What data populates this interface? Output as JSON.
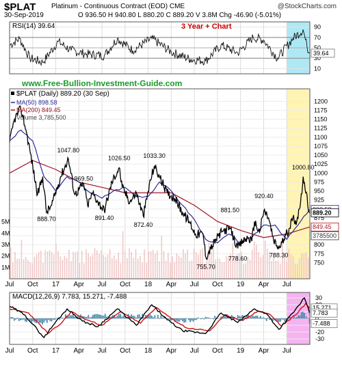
{
  "header": {
    "symbol": "$PLAT",
    "name": "Platinum - Continuous Contract (EOD) CME",
    "date": "30-Sep-2019",
    "ohlc": "O 936.50  H 940.80  L 880.20  C 889.20  V 3.8M  Chg -46.90 (-5.01%)",
    "brand": "@StockCharts.com",
    "change_color": "#cc0000"
  },
  "rsi": {
    "label": "RSI(14) 39.64",
    "current": 39.64,
    "current_label": "39.64",
    "annotation": "3 Year + Chart",
    "ticks": [
      10,
      30,
      50,
      70,
      90
    ],
    "levels": [
      30,
      70
    ],
    "ylim": [
      0,
      100
    ],
    "highlight_color": "#aee8f5"
  },
  "price": {
    "site": "www.Free-Bullion-Investment-Guide.com",
    "legend": {
      "main": "$PLAT (Daily) 889.20 (30 Sep)",
      "ma50": "MA(50) 898.58",
      "ma200": "MA(200) 849.45",
      "volume": "Volume 3,785,500"
    },
    "ylim": [
      705,
      1235
    ],
    "ticks": [
      750,
      775,
      800,
      825,
      850,
      875,
      900,
      925,
      950,
      975,
      1000,
      1025,
      1050,
      1075,
      1100,
      1125,
      1150,
      1175,
      1200
    ],
    "volume_ticks": [
      {
        "label": "1M",
        "value": 1000000
      },
      {
        "label": "2M",
        "value": 2000000
      },
      {
        "label": "3M",
        "value": 3000000
      },
      {
        "label": "4M",
        "value": 4000000
      },
      {
        "label": "5M",
        "value": 5000000
      }
    ],
    "volume_max": 7200000,
    "end_labels": [
      {
        "text": "898.58",
        "value": 898.58,
        "color": "#2a2a9a"
      },
      {
        "text": "889.20",
        "value": 889.2,
        "color": "#000000",
        "bold": true
      },
      {
        "text": "849.45",
        "value": 849.45,
        "color": "#b01020"
      },
      {
        "text": "3785500",
        "value": 3785500,
        "color": "#333333",
        "volume": true
      }
    ],
    "highlight_color": "#fff4b3",
    "ma50_color": "#2a2a9a",
    "ma200_color": "#a01020",
    "volume_color": "#f0c8c8"
  },
  "macd": {
    "label": "MACD(12,26,9) 7.783, 15.271, -7.488",
    "ylim": [
      -38,
      38
    ],
    "ticks": [
      -30,
      -20,
      -10,
      0,
      10,
      20,
      30
    ],
    "end_labels": [
      {
        "text": "15.271",
        "value": 15.271
      },
      {
        "text": "7.783",
        "value": 7.783
      },
      {
        "text": "-7.488",
        "value": -7.488
      }
    ],
    "highlight_color": "#f5b3f0",
    "hist_color": "#4a8ab0"
  },
  "x_axis": {
    "labels": [
      "Jul",
      "Oct",
      "17",
      "Apr",
      "Jul",
      "Oct",
      "18",
      "Apr",
      "Jul",
      "Oct",
      "19",
      "Apr",
      "Jul"
    ],
    "label_months": [
      0,
      3,
      6,
      9,
      12,
      15,
      18,
      21,
      24,
      27,
      30,
      33,
      36
    ],
    "month_span": [
      0,
      39
    ],
    "highlight_range": [
      36,
      39
    ]
  },
  "chart_data": {
    "type": "line",
    "title": "$PLAT (Daily) 889.20 (30 Sep)",
    "x_start": "2016-07",
    "x_end": "2019-09-30",
    "ylim": [
      705,
      1235
    ],
    "price_path": [
      {
        "date": "2016-07-01",
        "value": 1085
      },
      {
        "date": "2016-07-20",
        "value": 1150
      },
      {
        "date": "2016-08-15",
        "value": 1180
      },
      {
        "date": "2016-09-05",
        "value": 1120
      },
      {
        "date": "2016-09-20",
        "value": 1065
      },
      {
        "date": "2016-10-20",
        "value": 940
      },
      {
        "date": "2016-11-10",
        "value": 990
      },
      {
        "date": "2016-11-25",
        "value": 890
      },
      {
        "date": "2016-12-15",
        "value": 910
      },
      {
        "date": "2017-01-20",
        "value": 990
      },
      {
        "date": "2017-02-20",
        "value": 1040
      },
      {
        "date": "2017-03-15",
        "value": 940
      },
      {
        "date": "2017-04-20",
        "value": 970
      },
      {
        "date": "2017-05-05",
        "value": 910
      },
      {
        "date": "2017-05-25",
        "value": 945
      },
      {
        "date": "2017-06-15",
        "value": 920
      },
      {
        "date": "2017-07-10",
        "value": 895
      },
      {
        "date": "2017-08-10",
        "value": 975
      },
      {
        "date": "2017-09-08",
        "value": 1015
      },
      {
        "date": "2017-09-20",
        "value": 960
      },
      {
        "date": "2017-10-20",
        "value": 920
      },
      {
        "date": "2017-11-15",
        "value": 945
      },
      {
        "date": "2017-12-12",
        "value": 880
      },
      {
        "date": "2018-01-10",
        "value": 980
      },
      {
        "date": "2018-01-25",
        "value": 1020
      },
      {
        "date": "2018-02-15",
        "value": 990
      },
      {
        "date": "2018-03-15",
        "value": 945
      },
      {
        "date": "2018-04-15",
        "value": 930
      },
      {
        "date": "2018-05-15",
        "value": 890
      },
      {
        "date": "2018-06-15",
        "value": 860
      },
      {
        "date": "2018-07-05",
        "value": 830
      },
      {
        "date": "2018-08-05",
        "value": 830
      },
      {
        "date": "2018-08-16",
        "value": 765
      },
      {
        "date": "2018-09-05",
        "value": 790
      },
      {
        "date": "2018-10-05",
        "value": 825
      },
      {
        "date": "2018-10-25",
        "value": 840
      },
      {
        "date": "2018-11-20",
        "value": 845
      },
      {
        "date": "2018-12-20",
        "value": 790
      },
      {
        "date": "2019-01-10",
        "value": 810
      },
      {
        "date": "2019-01-31",
        "value": 820
      },
      {
        "date": "2019-02-15",
        "value": 810
      },
      {
        "date": "2019-02-25",
        "value": 865
      },
      {
        "date": "2019-03-15",
        "value": 835
      },
      {
        "date": "2019-04-02",
        "value": 895
      },
      {
        "date": "2019-04-20",
        "value": 875
      },
      {
        "date": "2019-05-10",
        "value": 810
      },
      {
        "date": "2019-05-30",
        "value": 790
      },
      {
        "date": "2019-06-20",
        "value": 815
      },
      {
        "date": "2019-07-10",
        "value": 845
      },
      {
        "date": "2019-07-25",
        "value": 875
      },
      {
        "date": "2019-08-10",
        "value": 865
      },
      {
        "date": "2019-08-25",
        "value": 920
      },
      {
        "date": "2019-09-05",
        "value": 990
      },
      {
        "date": "2019-09-15",
        "value": 945
      },
      {
        "date": "2019-09-30",
        "value": 889.2
      }
    ],
    "annotations": [
      {
        "text": "1047.80",
        "date": "2017-02-20",
        "value": 1047.8,
        "pos": "above"
      },
      {
        "text": "1026.50",
        "date": "2017-09-08",
        "value": 1026.5,
        "pos": "above"
      },
      {
        "text": "1033.30",
        "date": "2018-01-25",
        "value": 1033.3,
        "pos": "above"
      },
      {
        "text": "1000.80",
        "date": "2019-09-05",
        "value": 1000.8,
        "pos": "above"
      },
      {
        "text": "969.50",
        "date": "2017-04-20",
        "value": 969.5,
        "pos": "above"
      },
      {
        "text": "920.40",
        "date": "2019-04-02",
        "value": 920.4,
        "pos": "above"
      },
      {
        "text": "881.50",
        "date": "2018-11-20",
        "value": 881.5,
        "pos": "above"
      },
      {
        "text": "888.70",
        "date": "2016-11-25",
        "value": 888.7,
        "pos": "below"
      },
      {
        "text": "891.40",
        "date": "2017-07-10",
        "value": 891.4,
        "pos": "below"
      },
      {
        "text": "872.40",
        "date": "2017-12-12",
        "value": 872.4,
        "pos": "below"
      },
      {
        "text": "778.60",
        "date": "2018-12-20",
        "value": 778.6,
        "pos": "below"
      },
      {
        "text": "788.30",
        "date": "2019-05-30",
        "value": 788.3,
        "pos": "below"
      },
      {
        "text": "755.70",
        "date": "2018-08-16",
        "value": 755.7,
        "pos": "below"
      }
    ],
    "series": [
      {
        "name": "MA(50) 898.58",
        "values": [
          {
            "date": "2016-07-01",
            "value": 1090
          },
          {
            "date": "2016-08-15",
            "value": 1120
          },
          {
            "date": "2016-10-01",
            "value": 1090
          },
          {
            "date": "2016-11-15",
            "value": 990
          },
          {
            "date": "2017-01-01",
            "value": 950
          },
          {
            "date": "2017-02-15",
            "value": 990
          },
          {
            "date": "2017-04-01",
            "value": 975
          },
          {
            "date": "2017-05-15",
            "value": 945
          },
          {
            "date": "2017-07-01",
            "value": 930
          },
          {
            "date": "2017-08-15",
            "value": 950
          },
          {
            "date": "2017-10-01",
            "value": 960
          },
          {
            "date": "2017-11-15",
            "value": 935
          },
          {
            "date": "2018-01-01",
            "value": 935
          },
          {
            "date": "2018-02-15",
            "value": 975
          },
          {
            "date": "2018-04-01",
            "value": 950
          },
          {
            "date": "2018-05-15",
            "value": 910
          },
          {
            "date": "2018-07-01",
            "value": 870
          },
          {
            "date": "2018-08-15",
            "value": 815
          },
          {
            "date": "2018-10-01",
            "value": 805
          },
          {
            "date": "2018-11-15",
            "value": 830
          },
          {
            "date": "2019-01-01",
            "value": 805
          },
          {
            "date": "2019-02-15",
            "value": 820
          },
          {
            "date": "2019-04-01",
            "value": 855
          },
          {
            "date": "2019-05-15",
            "value": 855
          },
          {
            "date": "2019-07-01",
            "value": 815
          },
          {
            "date": "2019-08-15",
            "value": 855
          },
          {
            "date": "2019-09-30",
            "value": 898.58
          }
        ]
      },
      {
        "name": "MA(200) 849.45",
        "values": [
          {
            "date": "2016-07-01",
            "value": 1000
          },
          {
            "date": "2016-10-01",
            "value": 1035
          },
          {
            "date": "2017-01-01",
            "value": 1010
          },
          {
            "date": "2017-04-01",
            "value": 975
          },
          {
            "date": "2017-07-01",
            "value": 960
          },
          {
            "date": "2017-10-01",
            "value": 945
          },
          {
            "date": "2018-01-01",
            "value": 945
          },
          {
            "date": "2018-04-01",
            "value": 945
          },
          {
            "date": "2018-07-01",
            "value": 910
          },
          {
            "date": "2018-10-01",
            "value": 865
          },
          {
            "date": "2019-01-01",
            "value": 840
          },
          {
            "date": "2019-04-01",
            "value": 820
          },
          {
            "date": "2019-07-01",
            "value": 830
          },
          {
            "date": "2019-09-30",
            "value": 849.45
          }
        ]
      },
      {
        "name": "RSI(14) 39.64",
        "values": [
          {
            "date": "2016-07-01",
            "value": 55
          },
          {
            "date": "2016-08-10",
            "value": 68
          },
          {
            "date": "2016-09-20",
            "value": 30
          },
          {
            "date": "2016-11-10",
            "value": 22
          },
          {
            "date": "2017-01-10",
            "value": 62
          },
          {
            "date": "2017-03-01",
            "value": 45
          },
          {
            "date": "2017-05-01",
            "value": 38
          },
          {
            "date": "2017-07-10",
            "value": 35
          },
          {
            "date": "2017-09-01",
            "value": 68
          },
          {
            "date": "2017-11-01",
            "value": 45
          },
          {
            "date": "2018-01-15",
            "value": 68
          },
          {
            "date": "2018-04-01",
            "value": 42
          },
          {
            "date": "2018-06-15",
            "value": 28
          },
          {
            "date": "2018-08-15",
            "value": 25
          },
          {
            "date": "2018-10-15",
            "value": 55
          },
          {
            "date": "2018-12-20",
            "value": 40
          },
          {
            "date": "2019-02-20",
            "value": 70
          },
          {
            "date": "2019-04-01",
            "value": 65
          },
          {
            "date": "2019-05-25",
            "value": 30
          },
          {
            "date": "2019-07-25",
            "value": 68
          },
          {
            "date": "2019-09-05",
            "value": 85
          },
          {
            "date": "2019-09-20",
            "value": 52
          },
          {
            "date": "2019-09-30",
            "value": 39.64
          }
        ]
      },
      {
        "name": "MACD(12,26,9) 7.783",
        "values": [
          {
            "date": "2016-07-01",
            "value": 18
          },
          {
            "date": "2016-09-01",
            "value": 5
          },
          {
            "date": "2016-11-15",
            "value": -28
          },
          {
            "date": "2017-01-01",
            "value": -5
          },
          {
            "date": "2017-02-15",
            "value": 14
          },
          {
            "date": "2017-04-15",
            "value": -4
          },
          {
            "date": "2017-06-15",
            "value": -12
          },
          {
            "date": "2017-09-01",
            "value": 14
          },
          {
            "date": "2017-11-15",
            "value": -10
          },
          {
            "date": "2018-01-15",
            "value": 20
          },
          {
            "date": "2018-03-15",
            "value": -2
          },
          {
            "date": "2018-05-15",
            "value": -18
          },
          {
            "date": "2018-08-15",
            "value": -22
          },
          {
            "date": "2018-10-15",
            "value": 8
          },
          {
            "date": "2018-12-20",
            "value": -6
          },
          {
            "date": "2019-02-25",
            "value": 14
          },
          {
            "date": "2019-04-15",
            "value": 6
          },
          {
            "date": "2019-05-30",
            "value": -16
          },
          {
            "date": "2019-07-25",
            "value": 8
          },
          {
            "date": "2019-09-10",
            "value": 30
          },
          {
            "date": "2019-09-30",
            "value": 7.783
          }
        ]
      },
      {
        "name": "Signal 15.271",
        "values": [
          {
            "date": "2016-07-01",
            "value": 14
          },
          {
            "date": "2016-09-15",
            "value": 8
          },
          {
            "date": "2016-12-01",
            "value": -22
          },
          {
            "date": "2017-01-20",
            "value": -8
          },
          {
            "date": "2017-03-01",
            "value": 10
          },
          {
            "date": "2017-05-01",
            "value": -2
          },
          {
            "date": "2017-07-01",
            "value": -10
          },
          {
            "date": "2017-09-15",
            "value": 10
          },
          {
            "date": "2017-12-01",
            "value": -7
          },
          {
            "date": "2018-02-01",
            "value": 16
          },
          {
            "date": "2018-04-01",
            "value": 0
          },
          {
            "date": "2018-06-01",
            "value": -14
          },
          {
            "date": "2018-09-01",
            "value": -18
          },
          {
            "date": "2018-11-01",
            "value": 5
          },
          {
            "date": "2019-01-10",
            "value": -3
          },
          {
            "date": "2019-03-10",
            "value": 11
          },
          {
            "date": "2019-04-25",
            "value": 6
          },
          {
            "date": "2019-06-10",
            "value": -11
          },
          {
            "date": "2019-08-05",
            "value": 5
          },
          {
            "date": "2019-09-15",
            "value": 22
          },
          {
            "date": "2019-09-30",
            "value": 15.271
          }
        ]
      },
      {
        "name": "Histogram -7.488",
        "values": [
          {
            "date": "2016-11-15",
            "value": -6
          },
          {
            "date": "2017-02-15",
            "value": 4
          },
          {
            "date": "2017-09-01",
            "value": 4
          },
          {
            "date": "2018-01-15",
            "value": 4
          },
          {
            "date": "2018-05-15",
            "value": -4
          },
          {
            "date": "2018-10-15",
            "value": 3
          },
          {
            "date": "2019-02-25",
            "value": 3
          },
          {
            "date": "2019-05-30",
            "value": -5
          },
          {
            "date": "2019-09-10",
            "value": 8
          },
          {
            "date": "2019-09-30",
            "value": -7.488
          }
        ]
      }
    ]
  }
}
